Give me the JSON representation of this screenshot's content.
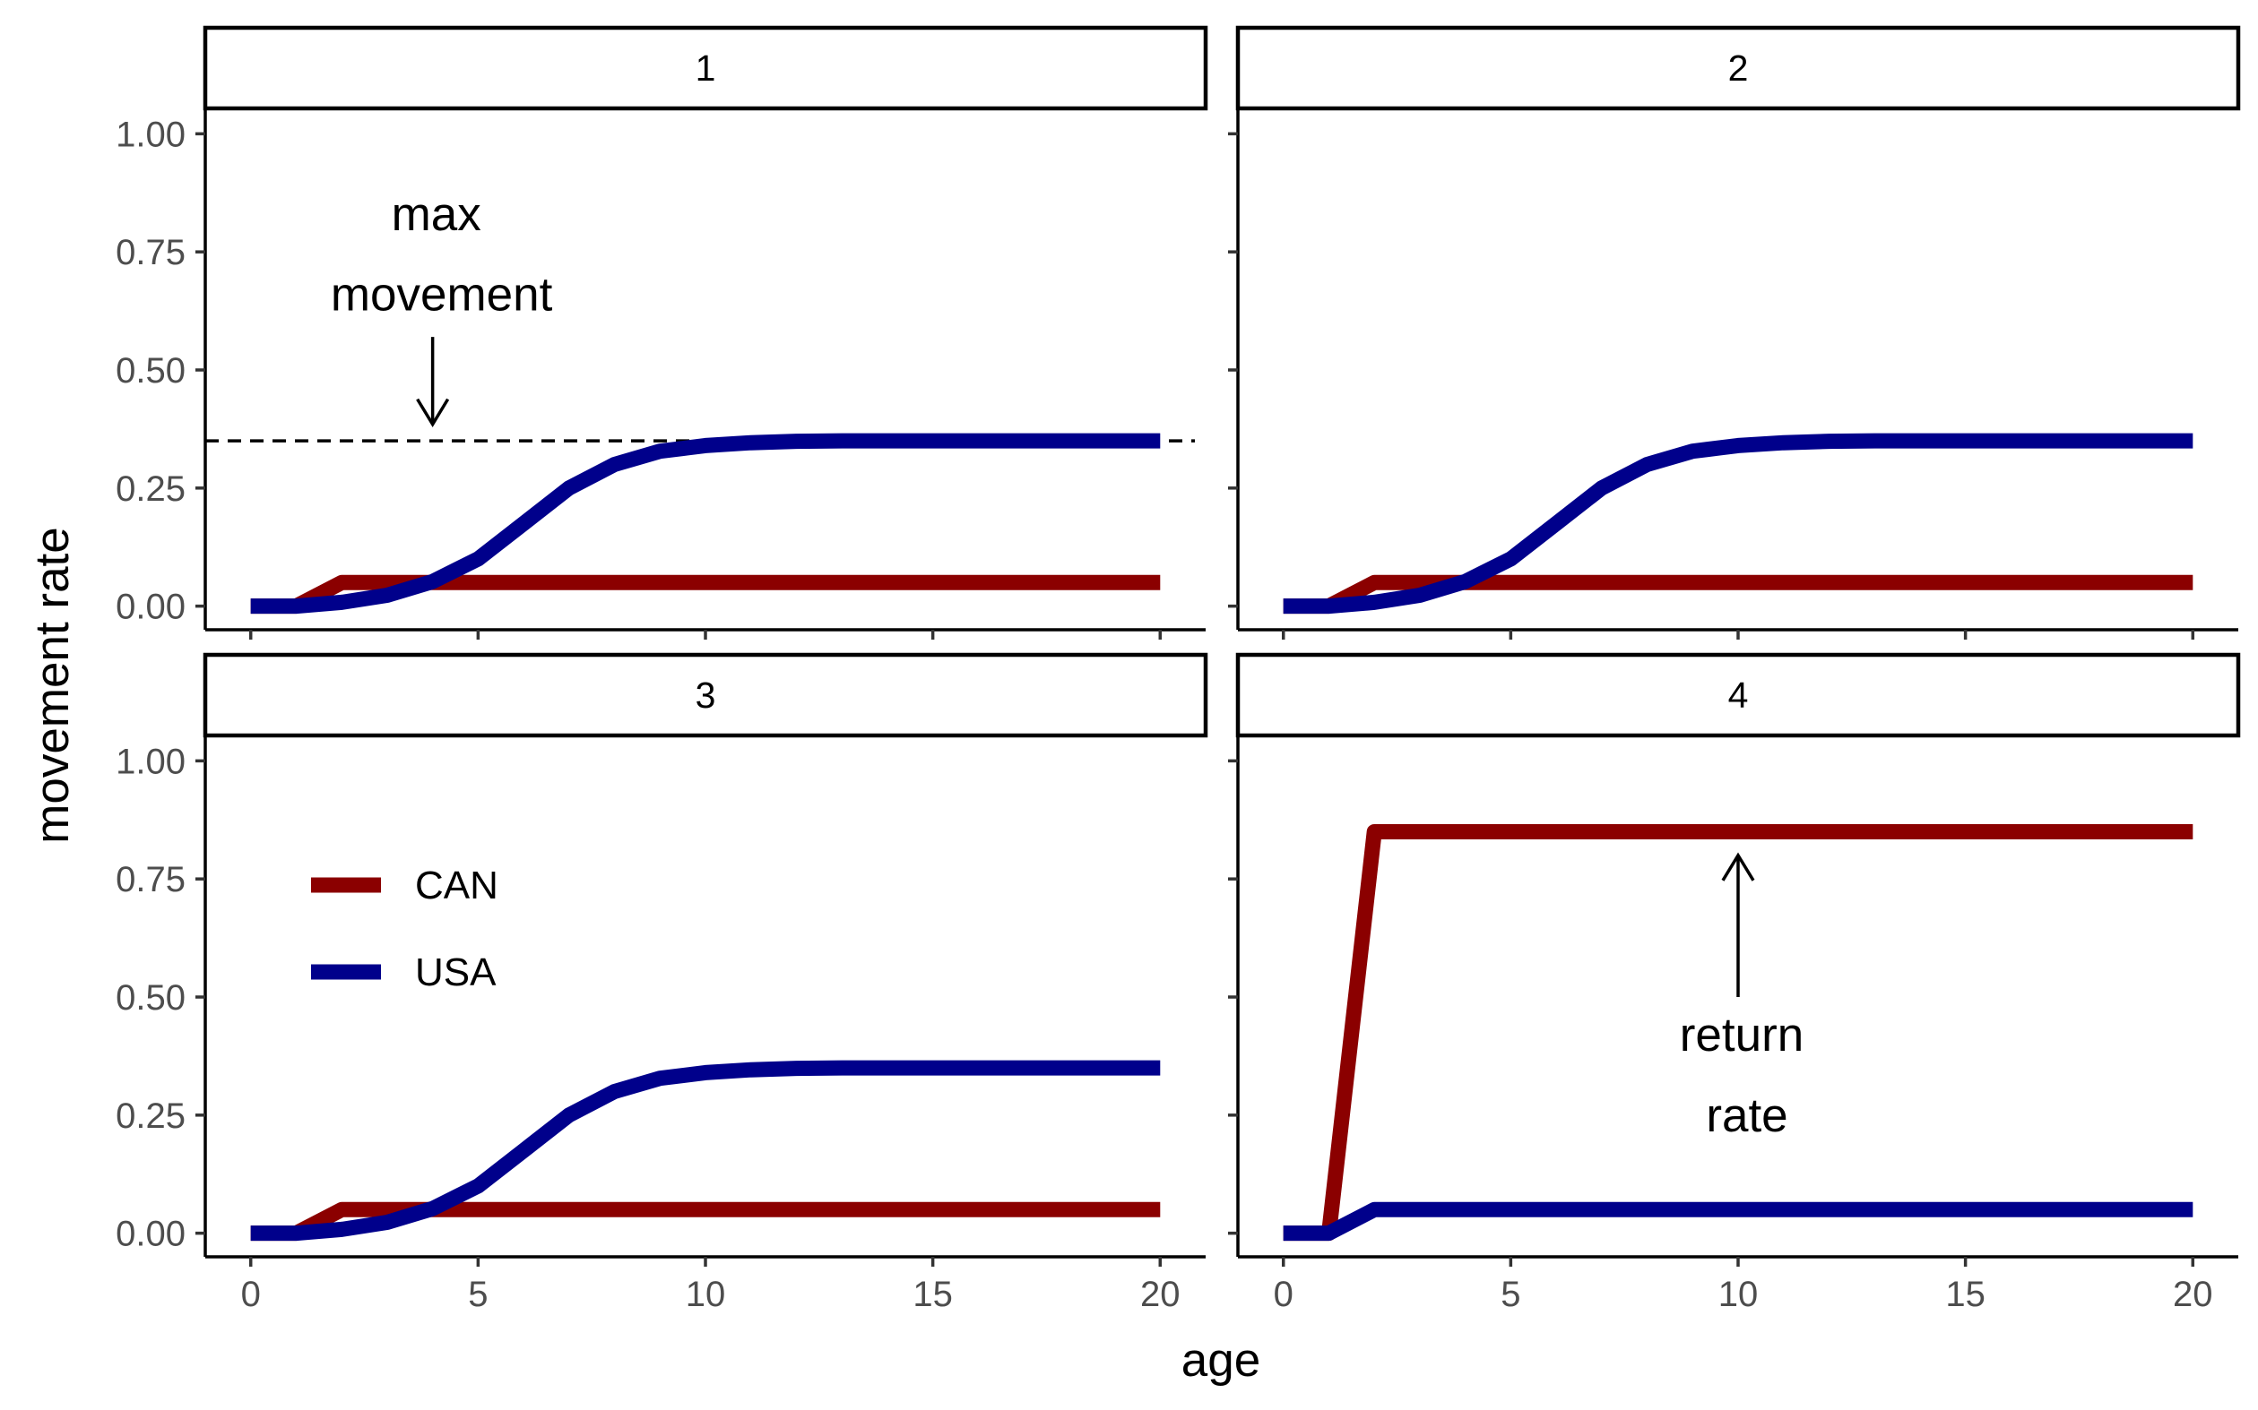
{
  "chart_data": {
    "type": "line",
    "xlabel": "age",
    "ylabel": "movement rate",
    "xlim": [
      -1,
      21
    ],
    "ylim": [
      -0.05,
      1.05
    ],
    "x_ticks": [
      0,
      5,
      10,
      15,
      20
    ],
    "x_tick_labels": [
      "0",
      "5",
      "10",
      "15",
      "20"
    ],
    "y_ticks": [
      0,
      0.25,
      0.5,
      0.75,
      1.0
    ],
    "y_tick_labels": [
      "0.00",
      "0.25",
      "0.50",
      "0.75",
      "1.00"
    ],
    "grid": false,
    "legend": {
      "placement": "inside panel 3, top-left",
      "entries": [
        {
          "label": "CAN",
          "color": "#8b0000"
        },
        {
          "label": "USA",
          "color": "#00008b"
        }
      ]
    },
    "x": [
      0,
      1,
      2,
      3,
      4,
      5,
      6,
      7,
      8,
      9,
      10,
      11,
      12,
      13,
      14,
      15,
      16,
      17,
      18,
      19,
      20
    ],
    "panels": [
      {
        "strip": "1",
        "series": [
          {
            "name": "CAN",
            "color": "#8b0000",
            "values": [
              0,
              0,
              0.05,
              0.05,
              0.05,
              0.05,
              0.05,
              0.05,
              0.05,
              0.05,
              0.05,
              0.05,
              0.05,
              0.05,
              0.05,
              0.05,
              0.05,
              0.05,
              0.05,
              0.05,
              0.05
            ]
          },
          {
            "name": "USA",
            "color": "#00008b",
            "values": [
              0,
              0,
              0.008,
              0.023,
              0.052,
              0.1,
              0.175,
              0.25,
              0.3,
              0.328,
              0.34,
              0.346,
              0.349,
              0.35,
              0.35,
              0.35,
              0.35,
              0.35,
              0.35,
              0.35,
              0.35
            ]
          }
        ],
        "reference_line": {
          "y": 0.35,
          "style": "dashed"
        },
        "annotation": {
          "line1": "max",
          "line2": "movement",
          "x": 4,
          "text_y": [
            0.83,
            0.66
          ],
          "arrow_from": 0.57,
          "arrow_to": 0.385
        }
      },
      {
        "strip": "2",
        "series": [
          {
            "name": "CAN",
            "color": "#8b0000",
            "values": [
              0,
              0,
              0.05,
              0.05,
              0.05,
              0.05,
              0.05,
              0.05,
              0.05,
              0.05,
              0.05,
              0.05,
              0.05,
              0.05,
              0.05,
              0.05,
              0.05,
              0.05,
              0.05,
              0.05,
              0.05
            ]
          },
          {
            "name": "USA",
            "color": "#00008b",
            "values": [
              0,
              0,
              0.008,
              0.023,
              0.052,
              0.1,
              0.175,
              0.25,
              0.3,
              0.328,
              0.34,
              0.346,
              0.349,
              0.35,
              0.35,
              0.35,
              0.35,
              0.35,
              0.35,
              0.35,
              0.35
            ]
          }
        ]
      },
      {
        "strip": "3",
        "series": [
          {
            "name": "CAN",
            "color": "#8b0000",
            "values": [
              0,
              0,
              0.05,
              0.05,
              0.05,
              0.05,
              0.05,
              0.05,
              0.05,
              0.05,
              0.05,
              0.05,
              0.05,
              0.05,
              0.05,
              0.05,
              0.05,
              0.05,
              0.05,
              0.05,
              0.05
            ]
          },
          {
            "name": "USA",
            "color": "#00008b",
            "values": [
              0,
              0,
              0.008,
              0.023,
              0.052,
              0.1,
              0.175,
              0.25,
              0.3,
              0.328,
              0.34,
              0.346,
              0.349,
              0.35,
              0.35,
              0.35,
              0.35,
              0.35,
              0.35,
              0.35,
              0.35
            ]
          }
        ],
        "show_legend": true
      },
      {
        "strip": "4",
        "series": [
          {
            "name": "CAN",
            "color": "#8b0000",
            "values": [
              0,
              0,
              0.85,
              0.85,
              0.85,
              0.85,
              0.85,
              0.85,
              0.85,
              0.85,
              0.85,
              0.85,
              0.85,
              0.85,
              0.85,
              0.85,
              0.85,
              0.85,
              0.85,
              0.85,
              0.85
            ]
          },
          {
            "name": "USA",
            "color": "#00008b",
            "values": [
              0,
              0,
              0.05,
              0.05,
              0.05,
              0.05,
              0.05,
              0.05,
              0.05,
              0.05,
              0.05,
              0.05,
              0.05,
              0.05,
              0.05,
              0.05,
              0.05,
              0.05,
              0.05,
              0.05,
              0.05
            ]
          }
        ],
        "annotation": {
          "line1": "return",
          "line2": "rate",
          "x": 10,
          "text_y": [
            0.42,
            0.25
          ],
          "arrow_from": 0.5,
          "arrow_to": 0.8
        }
      }
    ]
  }
}
